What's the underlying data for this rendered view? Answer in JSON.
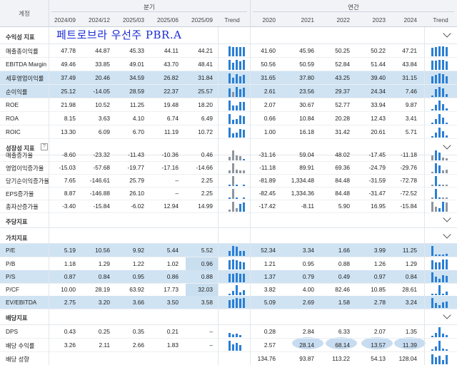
{
  "banner": "페트로브라 우선주 PBR.A",
  "header": {
    "label": "계정",
    "quarter_group": "분기",
    "annual_group": "연간",
    "quarters": [
      "2024/09",
      "2024/12",
      "2025/03",
      "2025/06",
      "2025/09"
    ],
    "years": [
      "2020",
      "2021",
      "2022",
      "2023",
      "2024"
    ],
    "trend": "Trend"
  },
  "sections": {
    "profitability": "수익성 지표",
    "growth": "성장성 지표",
    "per_share": "주당지표",
    "valuation": "가치지표",
    "dividend": "배당지표"
  },
  "rows": {
    "r1": {
      "label": "매출총이익률",
      "q": [
        "47.78",
        "44.87",
        "45.33",
        "44.11",
        "44.21"
      ],
      "y": [
        "41.60",
        "45.96",
        "50.25",
        "50.22",
        "47.21"
      ]
    },
    "r2": {
      "label": "EBITDA Margin",
      "q": [
        "49.46",
        "33.85",
        "49.01",
        "43.70",
        "48.41"
      ],
      "y": [
        "50.56",
        "50.59",
        "52.84",
        "51.44",
        "43.84"
      ]
    },
    "r3": {
      "label": "세후영업이익률",
      "q": [
        "37.49",
        "20.46",
        "34.59",
        "26.82",
        "31.84"
      ],
      "y": [
        "31.65",
        "37.80",
        "43.25",
        "39.40",
        "31.15"
      ]
    },
    "r4": {
      "label": "순이익률",
      "q": [
        "25.12",
        "-14.05",
        "28.59",
        "22.37",
        "25.57"
      ],
      "y": [
        "2.61",
        "23.56",
        "29.37",
        "24.34",
        "7.46"
      ]
    },
    "r5": {
      "label": "ROE",
      "q": [
        "21.98",
        "10.52",
        "11.25",
        "19.48",
        "18.20"
      ],
      "y": [
        "2.07",
        "30.67",
        "52.77",
        "33.94",
        "9.87"
      ]
    },
    "r6": {
      "label": "ROA",
      "q": [
        "8.15",
        "3.63",
        "4.10",
        "6.74",
        "6.49"
      ],
      "y": [
        "0.66",
        "10.84",
        "20.28",
        "12.43",
        "3.41"
      ]
    },
    "r7": {
      "label": "ROIC",
      "q": [
        "13.30",
        "6.09",
        "6.70",
        "11.19",
        "10.72"
      ],
      "y": [
        "1.00",
        "16.18",
        "31.42",
        "20.61",
        "5.71"
      ]
    },
    "g1": {
      "label": "매출증가율",
      "q": [
        "-8.60",
        "-23.32",
        "-11.43",
        "-10.36",
        "0.46"
      ],
      "y": [
        "-31.16",
        "59.04",
        "48.02",
        "-17.45",
        "-11.18"
      ]
    },
    "g2": {
      "label": "영업이익증가율",
      "q": [
        "-15.03",
        "-57.68",
        "-19.77",
        "-17.16",
        "-14.66"
      ],
      "y": [
        "-11.18",
        "89.91",
        "69.36",
        "-24.79",
        "-29.76"
      ]
    },
    "g3": {
      "label": "당기순이익증가율",
      "q": [
        "7.65",
        "-146.61",
        "25.79",
        "–",
        "2.25"
      ],
      "y": [
        "-81.89",
        "1,334.48",
        "84.48",
        "-31.59",
        "-72.78"
      ]
    },
    "g4": {
      "label": "EPS증가율",
      "q": [
        "8.87",
        "-146.88",
        "26.10",
        "–",
        "2.25"
      ],
      "y": [
        "-82.45",
        "1,334.36",
        "84.48",
        "-31.47",
        "-72.52"
      ]
    },
    "g5": {
      "label": "총자산증가율",
      "q": [
        "-3.40",
        "-15.84",
        "-6.02",
        "12.94",
        "14.99"
      ],
      "y": [
        "-17.42",
        "-8.11",
        "5.90",
        "16.95",
        "-15.84"
      ]
    },
    "v1": {
      "label": "P/E",
      "q": [
        "5.19",
        "10.56",
        "9.92",
        "5.44",
        "5.52"
      ],
      "y": [
        "52.34",
        "3.34",
        "1.66",
        "3.99",
        "11.25"
      ]
    },
    "v2": {
      "label": "P/B",
      "q": [
        "1.18",
        "1.29",
        "1.22",
        "1.02",
        "0.96"
      ],
      "y": [
        "1.21",
        "0.95",
        "0.88",
        "1.26",
        "1.29"
      ]
    },
    "v3": {
      "label": "P/S",
      "q": [
        "0.87",
        "0.84",
        "0.95",
        "0.86",
        "0.88"
      ],
      "y": [
        "1.37",
        "0.79",
        "0.49",
        "0.97",
        "0.84"
      ]
    },
    "v4": {
      "label": "P/CF",
      "q": [
        "10.00",
        "28.19",
        "63.92",
        "17.73",
        "32.03"
      ],
      "y": [
        "3.82",
        "4.00",
        "82.46",
        "10.85",
        "28.61"
      ]
    },
    "v5": {
      "label": "EV/EBITDA",
      "q": [
        "2.75",
        "3.20",
        "3.66",
        "3.50",
        "3.58"
      ],
      "y": [
        "5.09",
        "2.69",
        "1.58",
        "2.78",
        "3.24"
      ]
    },
    "d1": {
      "label": "DPS",
      "q": [
        "0.43",
        "0.25",
        "0.35",
        "0.21",
        "–"
      ],
      "y": [
        "0.28",
        "2.84",
        "6.33",
        "2.07",
        "1.35"
      ]
    },
    "d2": {
      "label": "배당 수익률",
      "q": [
        "3.26",
        "2.11",
        "2.66",
        "1.83",
        "–"
      ],
      "y": [
        "2.57",
        "28.14",
        "68.14",
        "13.57",
        "11.39"
      ]
    },
    "d3": {
      "label": "배당 성향",
      "q": [
        "",
        "",
        "",
        "",
        ""
      ],
      "y": [
        "134.76",
        "93.87",
        "113.22",
        "54.13",
        "128.04"
      ]
    }
  },
  "colors": {
    "accent": "#2a7fd4",
    "highlight": "#cfe3f3",
    "negative_bar": "#8f959e",
    "banner": "#1a2bd6"
  }
}
